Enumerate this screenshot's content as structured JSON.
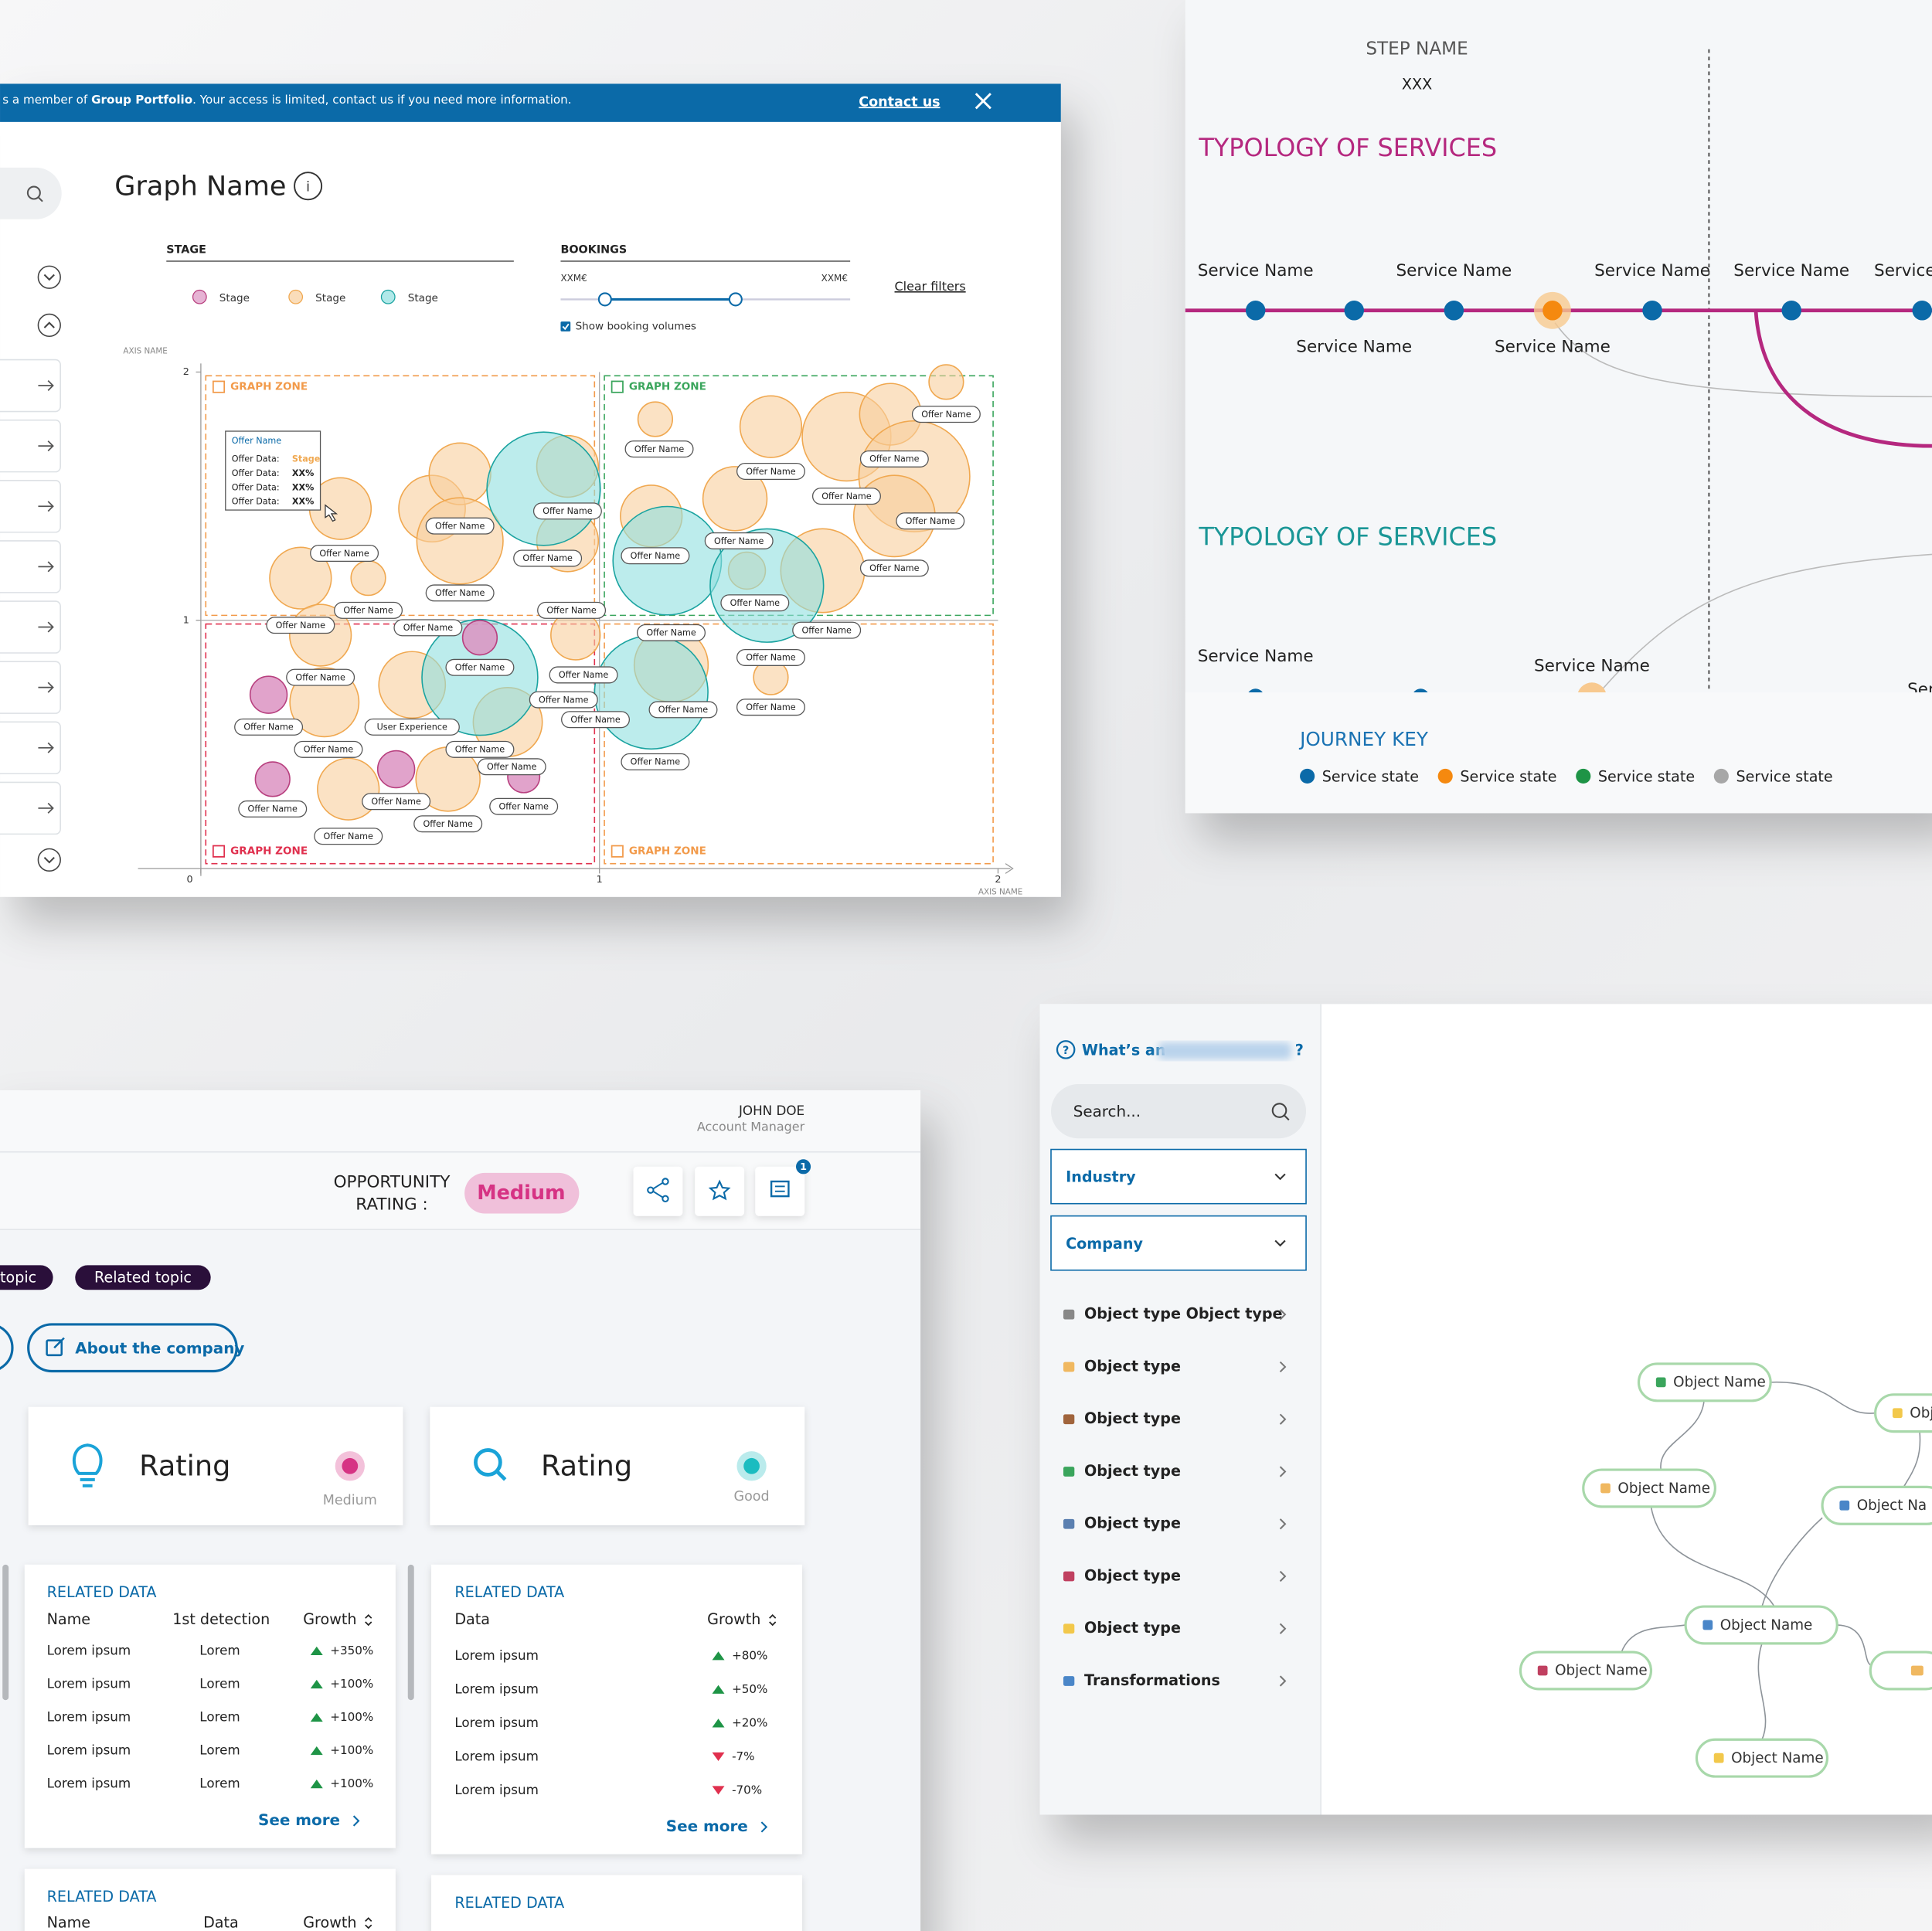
{
  "bubble_panel": {
    "banner": {
      "parts": [
        "s a member of ",
        "Group Portfolio",
        ". Your access is limited, contact us if you need more information."
      ],
      "link": "Contact us"
    },
    "title": "Graph Name",
    "stage_label": "STAGE",
    "bookings": {
      "label": "BOOKINGS",
      "min": "XXM€",
      "max": "XXM€",
      "checkbox": "Show booking volumes"
    },
    "clear": "Clear filters",
    "tooltip": {
      "title": "Offer Name",
      "rows": [
        {
          "label": "Offer Data:",
          "value": "Stage"
        },
        {
          "label": "Offer Data:",
          "value": "XX%"
        },
        {
          "label": "Offer Data:",
          "value": "XX%"
        },
        {
          "label": "Offer Data:",
          "value": "XX%"
        }
      ]
    }
  },
  "chart_data": {
    "type": "bubble",
    "x_label": "AXIS NAME",
    "y_label": "AXIS NAME",
    "xlim": [
      0,
      2
    ],
    "ylim": [
      0,
      2
    ],
    "xticks": [
      0,
      1,
      2
    ],
    "yticks": [
      1,
      2
    ],
    "zones": [
      {
        "label": "GRAPH ZONE",
        "color": "#f29a4a",
        "x": [
          0,
          1
        ],
        "y": [
          1,
          2
        ]
      },
      {
        "label": "GRAPH ZONE",
        "color": "#3aa55c",
        "x": [
          1,
          2
        ],
        "y": [
          1,
          2
        ]
      },
      {
        "label": "GRAPH ZONE",
        "color": "#e0304e",
        "x": [
          0,
          1
        ],
        "y": [
          0,
          1
        ]
      },
      {
        "label": "GRAPH ZONE",
        "color": "#f29a4a",
        "x": [
          1,
          2
        ],
        "y": [
          0,
          1
        ]
      }
    ],
    "series": [
      {
        "name": "Stage",
        "color": "#dc93c2",
        "stroke": "#b8407f",
        "x": [
          0.17,
          0.18,
          0.49,
          0.7,
          0.81
        ],
        "y": [
          0.7,
          0.36,
          0.4,
          0.93,
          0.37
        ],
        "size": [
          1.5,
          1.4,
          1.5,
          1.4,
          1.3
        ]
      },
      {
        "name": "Stage",
        "color": "#f8cf9c",
        "stroke": "#f0a850",
        "x": [
          0.35,
          0.25,
          0.42,
          0.58,
          0.65,
          0.65,
          0.92,
          0.92,
          0.3,
          0.31,
          0.53,
          0.37,
          0.62,
          0.77,
          0.94,
          1.14,
          1.43,
          1.62,
          1.73,
          1.79,
          1.74,
          1.87,
          1.13,
          1.34,
          1.56,
          1.37,
          1.43,
          1.18
        ],
        "y": [
          1.45,
          1.17,
          1.17,
          1.45,
          1.59,
          1.32,
          1.32,
          1.62,
          0.94,
          0.67,
          0.74,
          0.32,
          0.36,
          0.59,
          0.94,
          1.81,
          1.78,
          1.74,
          1.83,
          1.58,
          1.42,
          1.96,
          1.42,
          1.49,
          1.2,
          1.2,
          0.77,
          0.82
        ],
        "size": [
          2.5,
          2.5,
          1.4,
          2.7,
          2.5,
          3.5,
          2.5,
          2.5,
          2.5,
          2.8,
          2.7,
          2.5,
          2.6,
          2.8,
          2.0,
          1.4,
          2.5,
          3.6,
          2.5,
          4.5,
          3.3,
          1.4,
          2.5,
          2.6,
          3.4,
          1.5,
          1.4,
          3.0
        ]
      },
      {
        "name": "Stage",
        "color": "#8fe0df",
        "stroke": "#1aa3a0",
        "x": [
          0.86,
          1.17,
          1.42,
          0.7,
          1.13
        ],
        "y": [
          1.53,
          1.24,
          1.14,
          0.77,
          0.71
        ],
        "size": [
          4.6,
          4.4,
          4.6,
          4.7,
          4.6
        ]
      }
    ],
    "offer_labels": [
      {
        "text": "Offer Name",
        "x": 0.36,
        "y": 1.27
      },
      {
        "text": "Offer Name",
        "x": 0.42,
        "y": 1.04
      },
      {
        "text": "Offer Name",
        "x": 0.25,
        "y": 0.98
      },
      {
        "text": "Offer Name",
        "x": 0.65,
        "y": 1.38
      },
      {
        "text": "Offer Name",
        "x": 0.65,
        "y": 1.11
      },
      {
        "text": "Offer Name",
        "x": 0.92,
        "y": 1.44
      },
      {
        "text": "Offer Name",
        "x": 0.87,
        "y": 1.25
      },
      {
        "text": "Offer Name",
        "x": 0.93,
        "y": 1.04
      },
      {
        "text": "Offer Name",
        "x": 0.57,
        "y": 0.97
      },
      {
        "text": "Offer Name",
        "x": 0.7,
        "y": 0.81
      },
      {
        "text": "Offer Name",
        "x": 0.3,
        "y": 0.77
      },
      {
        "text": "Offer Name",
        "x": 0.17,
        "y": 0.57
      },
      {
        "text": "Offer Name",
        "x": 0.32,
        "y": 0.48
      },
      {
        "text": "User Experience",
        "x": 0.53,
        "y": 0.57
      },
      {
        "text": "Offer Name",
        "x": 0.7,
        "y": 0.48
      },
      {
        "text": "Offer Name",
        "x": 0.78,
        "y": 0.41
      },
      {
        "text": "Offer Name",
        "x": 0.96,
        "y": 0.78
      },
      {
        "text": "Offer Name",
        "x": 0.91,
        "y": 0.68
      },
      {
        "text": "Offer Name",
        "x": 0.99,
        "y": 0.6
      },
      {
        "text": "Offer Name",
        "x": 0.81,
        "y": 0.25
      },
      {
        "text": "Offer Name",
        "x": 0.49,
        "y": 0.27
      },
      {
        "text": "Offer Name",
        "x": 0.62,
        "y": 0.18
      },
      {
        "text": "Offer Name",
        "x": 0.37,
        "y": 0.13
      },
      {
        "text": "Offer Name",
        "x": 0.18,
        "y": 0.24
      },
      {
        "text": "Offer Name",
        "x": 1.15,
        "y": 1.69
      },
      {
        "text": "Offer Name",
        "x": 1.43,
        "y": 1.6
      },
      {
        "text": "Offer Name",
        "x": 1.62,
        "y": 1.5
      },
      {
        "text": "Offer Name",
        "x": 1.74,
        "y": 1.65
      },
      {
        "text": "Offer Name",
        "x": 1.87,
        "y": 1.83
      },
      {
        "text": "Offer Name",
        "x": 1.83,
        "y": 1.4
      },
      {
        "text": "Offer Name",
        "x": 1.74,
        "y": 1.21
      },
      {
        "text": "Offer Name",
        "x": 1.35,
        "y": 1.32
      },
      {
        "text": "Offer Name",
        "x": 1.14,
        "y": 1.26
      },
      {
        "text": "Offer Name",
        "x": 1.39,
        "y": 1.07
      },
      {
        "text": "Offer Name",
        "x": 1.18,
        "y": 0.95
      },
      {
        "text": "Offer Name",
        "x": 1.57,
        "y": 0.96
      },
      {
        "text": "Offer Name",
        "x": 1.43,
        "y": 0.85
      },
      {
        "text": "Offer Name",
        "x": 1.21,
        "y": 0.64
      },
      {
        "text": "Offer Name",
        "x": 1.43,
        "y": 0.65
      },
      {
        "text": "Offer Name",
        "x": 1.14,
        "y": 0.43
      }
    ]
  },
  "journey": {
    "step_name": "STEP NAME",
    "step_value": "XXX",
    "sections": [
      {
        "title": "TYPOLOGY OF SERVICES",
        "color": "#b5287f",
        "services": [
          "Service Name",
          "Service Name",
          "Service Name",
          "Service Name",
          "Service Name",
          "Service Name",
          "Service"
        ]
      },
      {
        "title": "TYPOLOGY OF SERVICES",
        "color": "#1a9696",
        "services": [
          "Service Name",
          "Service Name",
          "Ser"
        ]
      }
    ],
    "key": {
      "title": "JOURNEY KEY",
      "states": [
        {
          "name": "Service state",
          "color": "#0b6aa8"
        },
        {
          "name": "Service state",
          "color": "#f5890f"
        },
        {
          "name": "Service state",
          "color": "#1e9446"
        },
        {
          "name": "Service state",
          "color": "#a7a7a7"
        }
      ]
    }
  },
  "opportunity": {
    "user": {
      "name": "JOHN DOE",
      "role": "Account Manager"
    },
    "rating_label": [
      "OPPORTUNITY",
      "RATING :"
    ],
    "rating": "Medium",
    "notifications": 1,
    "topics": [
      "topic",
      "Related topic"
    ],
    "about": "About the company",
    "cards": [
      {
        "title": "Rating",
        "level": "Medium",
        "color": "#d63384"
      },
      {
        "title": "Rating",
        "level": "Good",
        "color": "#1bbcc0"
      }
    ],
    "tables": [
      {
        "title": "RELATED DATA",
        "columns": [
          "Name",
          "1st detection",
          "Growth"
        ],
        "rows": [
          [
            "Lorem ipsum",
            "Lorem",
            "+350%"
          ],
          [
            "Lorem ipsum",
            "Lorem",
            "+100%"
          ],
          [
            "Lorem ipsum",
            "Lorem",
            "+100%"
          ],
          [
            "Lorem ipsum",
            "Lorem",
            "+100%"
          ],
          [
            "Lorem ipsum",
            "Lorem",
            "+100%"
          ]
        ],
        "more": "See more"
      },
      {
        "title": "RELATED DATA",
        "columns": [
          "Data",
          "Growth"
        ],
        "rows": [
          [
            "Lorem ipsum",
            "+80%"
          ],
          [
            "Lorem ipsum",
            "+50%"
          ],
          [
            "Lorem ipsum",
            "+20%"
          ],
          [
            "Lorem ipsum",
            "-7%"
          ],
          [
            "Lorem ipsum",
            "-70%"
          ]
        ],
        "more": "See more"
      },
      {
        "title": "RELATED DATA",
        "columns": [
          "Name",
          "Data",
          "Growth"
        ]
      },
      {
        "title": "RELATED DATA"
      }
    ]
  },
  "explorer": {
    "help": [
      "What’s an",
      "?"
    ],
    "search": "Search...",
    "dropdowns": [
      "Industry",
      "Company"
    ],
    "types": [
      "Object type  Object type",
      "Object type",
      "Object type",
      "Object type",
      "Object type",
      "Object type",
      "Object type",
      "Transformations"
    ],
    "nodes": [
      "Object Name",
      "Obj",
      "Object Name",
      "Object Na",
      "Object Name",
      "Object Name",
      "Object Name"
    ]
  }
}
